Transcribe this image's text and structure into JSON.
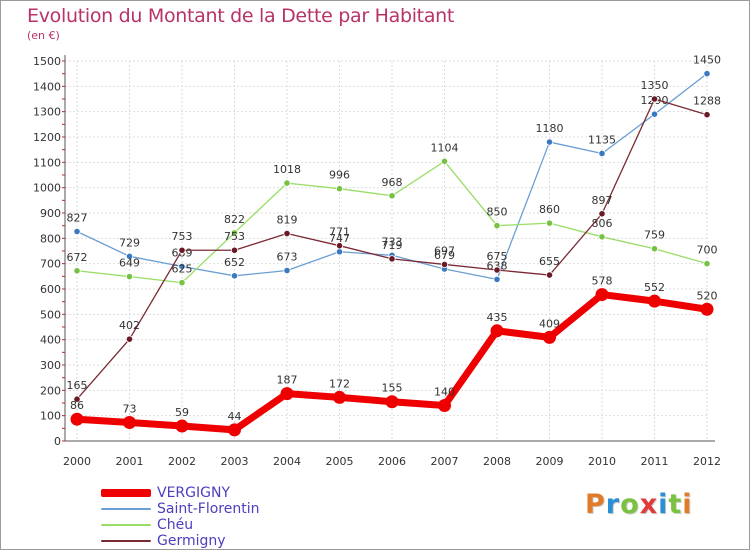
{
  "title": "Evolution du Montant de la Dette par Habitant",
  "unit_label": "(en €)",
  "logo": {
    "text": "Proxiti",
    "letter_colors": [
      "#e07b2a",
      "#2a8fd6",
      "#7cc242",
      "#e03a3a",
      "#2a8fd6",
      "#7cc242",
      "#e07b2a"
    ]
  },
  "chart_data": {
    "type": "line",
    "title": "Evolution du Montant de la Dette par Habitant",
    "subtitle": "(en €)",
    "xlabel": "",
    "ylabel": "",
    "x": [
      "2000",
      "2001",
      "2002",
      "2003",
      "2004",
      "2005",
      "2006",
      "2007",
      "2008",
      "2009",
      "2010",
      "2011",
      "2012"
    ],
    "ylim": [
      0,
      1500
    ],
    "yticks": [
      0,
      100,
      200,
      300,
      400,
      500,
      600,
      700,
      800,
      900,
      1000,
      1100,
      1200,
      1300,
      1400,
      1500
    ],
    "grid": true,
    "legend_position": "bottom-left",
    "series": [
      {
        "name": "Saint-Florentin",
        "color": "#6a9fd4",
        "marker": "#3a78c0",
        "values": [
          827,
          729,
          689,
          652,
          673,
          747,
          733,
          679,
          638,
          1180,
          1135,
          1290,
          1450
        ]
      },
      {
        "name": "Chéu",
        "color": "#99dd66",
        "marker": "#77c244",
        "values": [
          672,
          649,
          625,
          822,
          1018,
          996,
          968,
          1104,
          850,
          860,
          806,
          759,
          700
        ]
      },
      {
        "name": "Germigny",
        "color": "#7a2a34",
        "marker": "#6a1a24",
        "values": [
          165,
          402,
          753,
          753,
          819,
          771,
          719,
          697,
          675,
          655,
          897,
          1350,
          1288
        ]
      },
      {
        "name": "VERGIGNY",
        "color": "#ee0000",
        "marker": "#ee0000",
        "values": [
          86,
          73,
          59,
          44,
          187,
          172,
          155,
          140,
          435,
          409,
          578,
          552,
          520
        ]
      }
    ],
    "legend_order": [
      "VERGIGNY",
      "Saint-Florentin",
      "Chéu",
      "Germigny"
    ]
  }
}
